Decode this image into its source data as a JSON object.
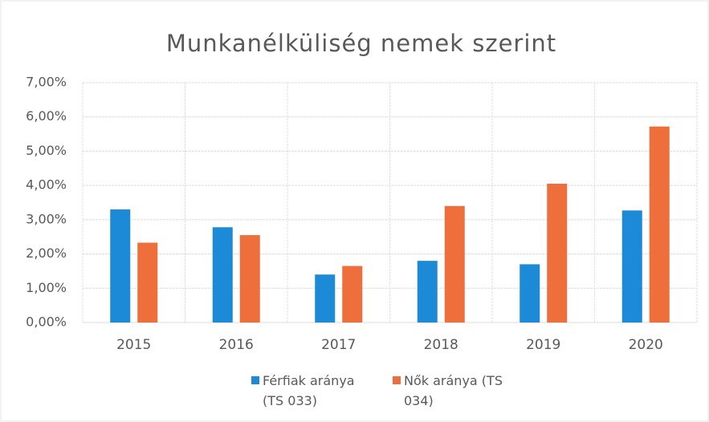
{
  "chart_data": {
    "type": "bar",
    "title": "Munkanélküliség nemek szerint",
    "categories": [
      "2015",
      "2016",
      "2017",
      "2018",
      "2019",
      "2020"
    ],
    "series": [
      {
        "name": "Férfiak aránya (TS 033)",
        "color": "#1c8ad6",
        "values": [
          3.3,
          2.78,
          1.4,
          1.8,
          1.7,
          3.27
        ]
      },
      {
        "name": "Nők aránya (TS 034)",
        "color": "#ee6e3c",
        "values": [
          2.33,
          2.55,
          1.65,
          3.4,
          4.05,
          5.72
        ]
      }
    ],
    "ylim": [
      0,
      7
    ],
    "yticks": [
      {
        "value": 0,
        "label": "0,00%"
      },
      {
        "value": 1,
        "label": "1,00%"
      },
      {
        "value": 2,
        "label": "2,00%"
      },
      {
        "value": 3,
        "label": "3,00%"
      },
      {
        "value": 4,
        "label": "4,00%"
      },
      {
        "value": 5,
        "label": "5,00%"
      },
      {
        "value": 6,
        "label": "6,00%"
      },
      {
        "value": 7,
        "label": "7,00%"
      }
    ],
    "grid": true,
    "legend": "bottom"
  }
}
